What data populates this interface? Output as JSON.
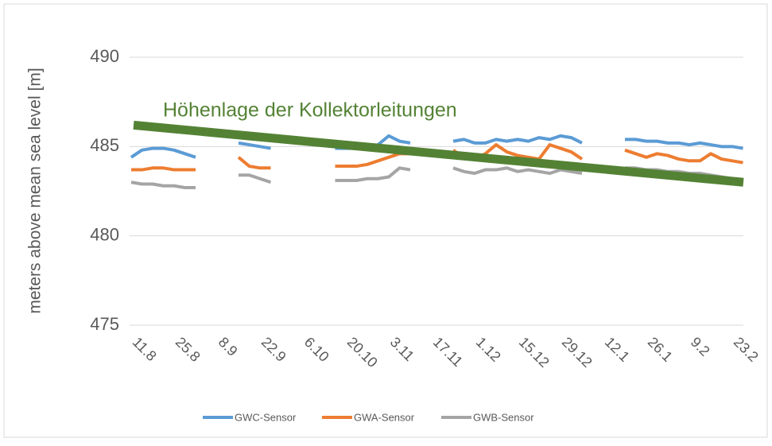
{
  "chart_data": {
    "type": "line",
    "y_label": "meters above mean sea level [m]",
    "categories": [
      "11.8",
      null,
      null,
      null,
      "25.8",
      null,
      null,
      null,
      "8.9",
      null,
      null,
      null,
      "22.9",
      null,
      null,
      null,
      "6.10",
      null,
      null,
      null,
      "20.10",
      null,
      null,
      null,
      "3.11",
      null,
      null,
      null,
      "17.11",
      null,
      null,
      null,
      "1.12",
      null,
      null,
      null,
      "15.12",
      null,
      null,
      null,
      "29.12",
      null,
      null,
      null,
      "12.1",
      null,
      null,
      null,
      "26.1",
      null,
      null,
      null,
      "9.2",
      null,
      null,
      null,
      "23.2",
      null
    ],
    "series": [
      {
        "name": "GWC-Sensor",
        "color": "#5b9bd5",
        "values": [
          484.4,
          484.8,
          484.9,
          484.9,
          484.8,
          484.6,
          484.4,
          null,
          null,
          null,
          485.2,
          485.1,
          485.0,
          484.9,
          null,
          null,
          null,
          null,
          null,
          484.9,
          484.9,
          484.9,
          485.0,
          485.1,
          485.6,
          485.3,
          485.2,
          null,
          null,
          null,
          485.3,
          485.4,
          485.2,
          485.2,
          485.4,
          485.3,
          485.4,
          485.3,
          485.5,
          485.4,
          485.6,
          485.5,
          485.2,
          null,
          null,
          null,
          485.4,
          485.4,
          485.3,
          485.3,
          485.2,
          485.2,
          485.1,
          485.2,
          485.1,
          485.0,
          485.0,
          484.9
        ]
      },
      {
        "name": "GWA-Sensor",
        "color": "#ed7d31",
        "values": [
          483.7,
          483.7,
          483.8,
          483.8,
          483.7,
          483.7,
          483.7,
          null,
          null,
          null,
          484.4,
          483.9,
          483.8,
          483.8,
          null,
          null,
          null,
          null,
          null,
          483.9,
          483.9,
          483.9,
          484.0,
          484.2,
          484.4,
          484.6,
          484.6,
          null,
          null,
          null,
          484.8,
          484.4,
          484.3,
          484.6,
          485.1,
          484.7,
          484.5,
          484.4,
          484.3,
          485.1,
          484.9,
          484.7,
          484.3,
          null,
          null,
          null,
          484.8,
          484.6,
          484.4,
          484.6,
          484.5,
          484.3,
          484.2,
          484.2,
          484.6,
          484.3,
          484.2,
          484.1
        ]
      },
      {
        "name": "GWB-Sensor",
        "color": "#a5a5a5",
        "values": [
          483.0,
          482.9,
          482.9,
          482.8,
          482.8,
          482.7,
          482.7,
          null,
          null,
          null,
          483.4,
          483.4,
          483.2,
          483.0,
          null,
          null,
          null,
          null,
          null,
          483.1,
          483.1,
          483.1,
          483.2,
          483.2,
          483.3,
          483.8,
          483.7,
          null,
          null,
          null,
          483.8,
          483.6,
          483.5,
          483.7,
          483.7,
          483.8,
          483.6,
          483.7,
          483.6,
          483.5,
          483.7,
          483.6,
          483.5,
          null,
          null,
          null,
          483.8,
          483.8,
          483.7,
          483.7,
          483.6,
          483.6,
          483.5,
          483.5,
          483.4,
          483.3,
          483.2,
          483.1
        ]
      }
    ],
    "annotation": {
      "text": "Höhenlage der Kollektorleitungen",
      "color": "#548235",
      "values": [
        486.2,
        483.0
      ]
    },
    "ylim": [
      475,
      490
    ],
    "yticks": [
      475,
      480,
      485,
      490
    ],
    "grid": true,
    "legend": "bottom"
  }
}
